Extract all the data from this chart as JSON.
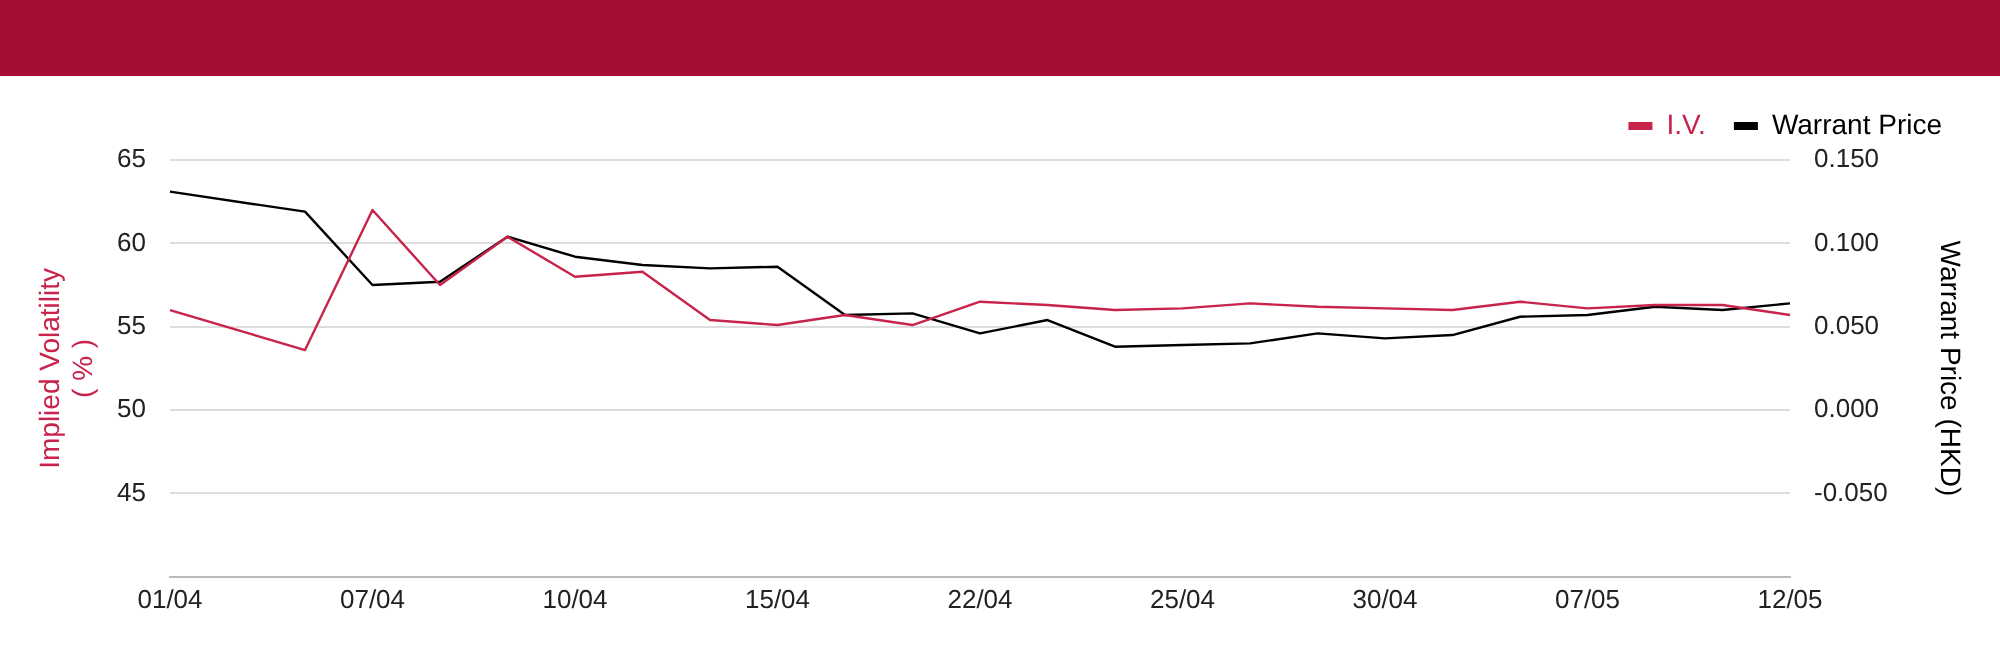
{
  "chart_data": {
    "type": "line",
    "categories": [
      "01/04",
      null,
      null,
      "07/04",
      null,
      null,
      "10/04",
      null,
      null,
      "15/04",
      null,
      null,
      "22/04",
      null,
      null,
      "25/04",
      null,
      null,
      "30/04",
      null,
      null,
      "07/05",
      null,
      null,
      "12/05"
    ],
    "series": [
      {
        "name": "I.V.",
        "color": "#c8234a",
        "values": [
          56.0,
          null,
          53.6,
          62.0,
          57.5,
          60.4,
          58.0,
          58.3,
          55.4,
          55.1,
          55.7,
          55.1,
          56.5,
          56.3,
          56.0,
          56.1,
          56.4,
          56.2,
          56.1,
          56.0,
          56.5,
          56.1,
          56.3,
          56.3,
          55.7
        ]
      },
      {
        "name": "Warrant Price",
        "color": "#000000",
        "axis": "y2",
        "values": [
          0.131,
          null,
          0.119,
          0.075,
          0.077,
          0.104,
          0.092,
          0.087,
          0.085,
          0.086,
          0.057,
          0.058,
          0.046,
          0.054,
          0.038,
          0.039,
          0.04,
          0.046,
          0.043,
          0.045,
          0.056,
          0.057,
          0.062,
          0.06,
          0.064
        ]
      }
    ],
    "ylabel": "Implied Volatility\n( % )",
    "y2label": "Warrant Price (HKD)",
    "ylim": [
      40,
      65
    ],
    "yticks": [
      45,
      50,
      55,
      60,
      65
    ],
    "y2lim": [
      -0.1,
      0.15
    ],
    "y2ticks": [
      {
        "value": -0.05,
        "label": "-0.050"
      },
      {
        "value": 0,
        "label": "0.000"
      },
      {
        "value": 0.05,
        "label": "0.050"
      },
      {
        "value": 0.1,
        "label": "0.100"
      },
      {
        "value": 0.15,
        "label": "0.150"
      }
    ],
    "grid": "y",
    "legend": "top right",
    "marker": "none",
    "line_style": "solid"
  }
}
